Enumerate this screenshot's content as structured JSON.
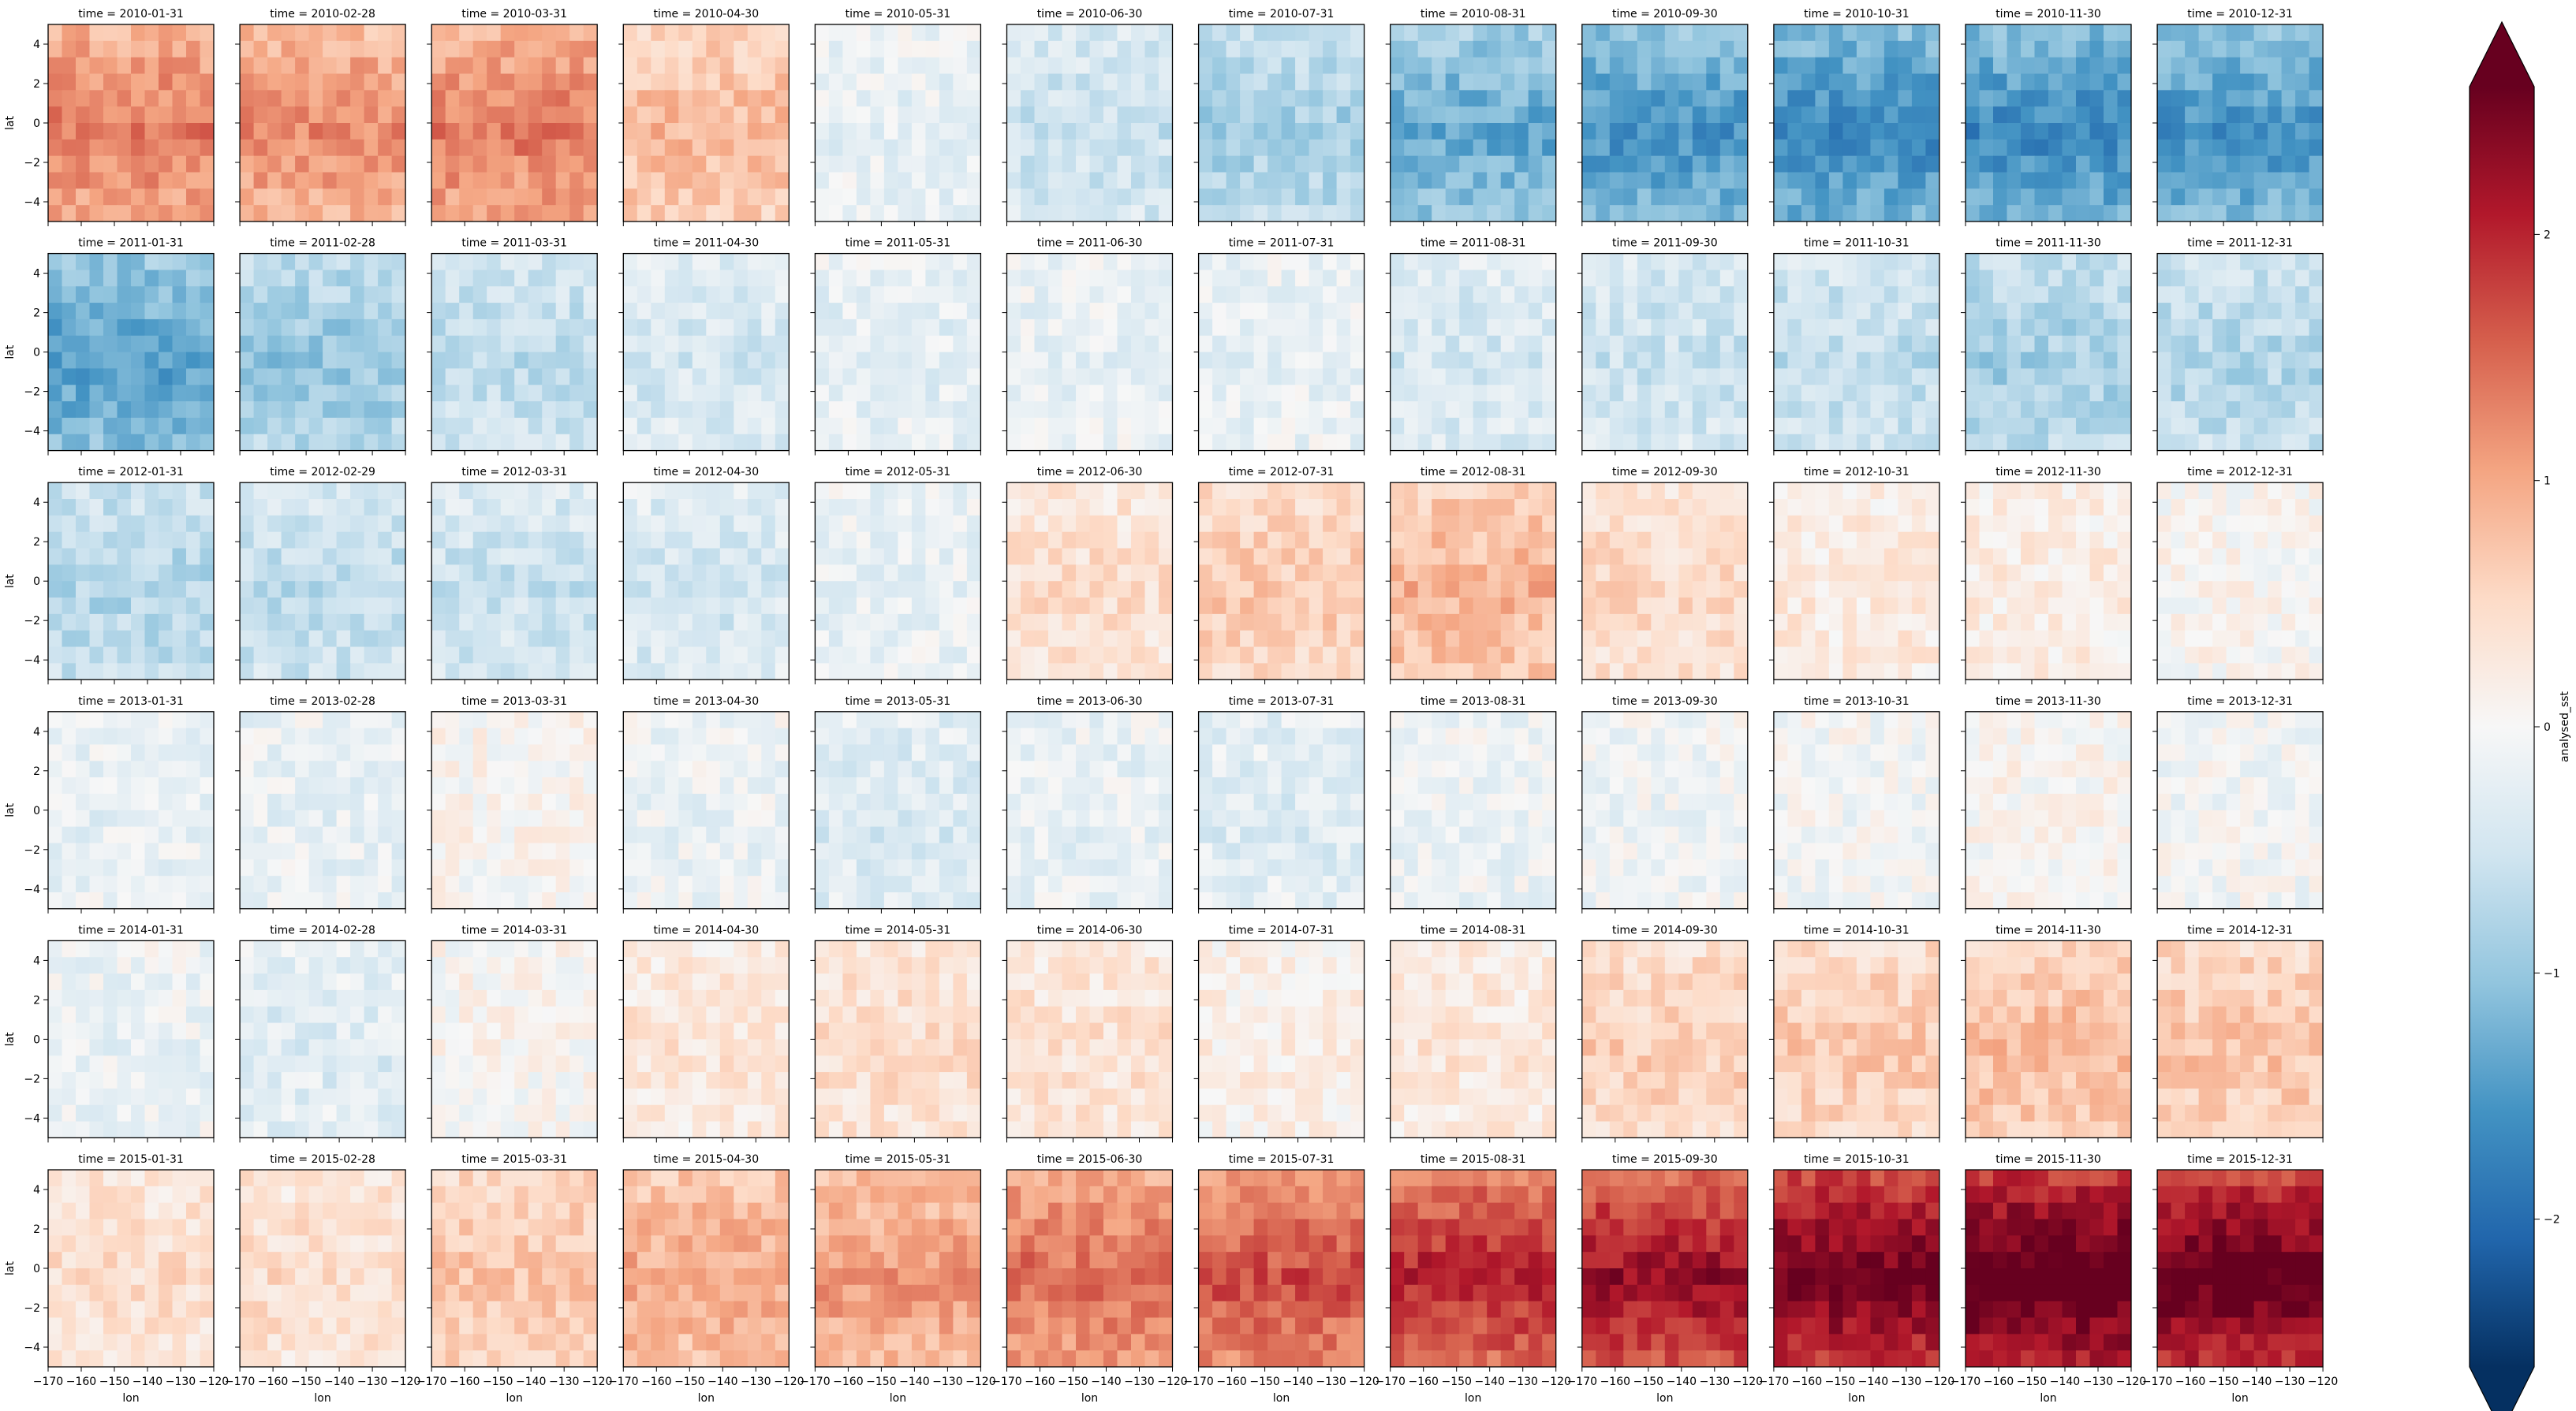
{
  "chart_data": {
    "type": "heatmap",
    "layout": "facet grid, 6 rows (years) x 12 columns (months)",
    "variable": "analysed_sst",
    "colormap": "RdBu_r",
    "colormap_stops": [
      "#053061",
      "#2166ac",
      "#4393c3",
      "#92c5de",
      "#d1e5f0",
      "#f7f7f7",
      "#fddbc7",
      "#f4a582",
      "#d6604d",
      "#b2182b",
      "#67001f"
    ],
    "colorbar": {
      "label": "analysed_sst",
      "range": [
        -2.6,
        2.6
      ],
      "ticks": [
        -2,
        -1,
        0,
        1,
        2
      ],
      "tick_labels": [
        "−2",
        "−1",
        "0",
        "1",
        "2"
      ],
      "extend": "both"
    },
    "xlabel": "lon",
    "ylabel": "lat",
    "xlim": [
      -170,
      -120
    ],
    "ylim": [
      -5,
      5
    ],
    "x_ticks": [
      -170,
      -160,
      -150,
      -140,
      -130,
      -120
    ],
    "x_tick_labels": [
      "−170",
      "−160",
      "−150",
      "−140",
      "−130",
      "−120"
    ],
    "y_ticks": [
      4,
      2,
      0,
      -2,
      -4
    ],
    "y_tick_labels": [
      "4",
      "2",
      "0",
      "−2",
      "−4"
    ],
    "panel_mean_anomaly": [
      [
        1.2,
        1.1,
        1.2,
        0.75,
        -0.2,
        -0.5,
        -0.8,
        -1.2,
        -1.4,
        -1.5,
        -1.5,
        -1.4
      ],
      [
        -1.3,
        -0.9,
        -0.6,
        -0.4,
        -0.25,
        -0.2,
        -0.2,
        -0.4,
        -0.5,
        -0.6,
        -0.8,
        -0.7
      ],
      [
        -0.7,
        -0.6,
        -0.5,
        -0.4,
        -0.2,
        0.4,
        0.6,
        0.8,
        0.45,
        0.25,
        0.2,
        0.05
      ],
      [
        -0.2,
        -0.2,
        0.05,
        -0.15,
        -0.35,
        -0.2,
        -0.3,
        -0.15,
        -0.1,
        -0.05,
        0.05,
        -0.05
      ],
      [
        -0.15,
        -0.3,
        0.05,
        0.3,
        0.4,
        0.35,
        0.15,
        0.3,
        0.55,
        0.6,
        0.75,
        0.65
      ],
      [
        0.4,
        0.4,
        0.65,
        0.9,
        1.0,
        1.3,
        1.5,
        1.8,
        2.0,
        2.3,
        2.5,
        2.4
      ]
    ],
    "panels": [
      {
        "title": "time = 2010-01-31"
      },
      {
        "title": "time = 2010-02-28"
      },
      {
        "title": "time = 2010-03-31"
      },
      {
        "title": "time = 2010-04-30"
      },
      {
        "title": "time = 2010-05-31"
      },
      {
        "title": "time = 2010-06-30"
      },
      {
        "title": "time = 2010-07-31"
      },
      {
        "title": "time = 2010-08-31"
      },
      {
        "title": "time = 2010-09-30"
      },
      {
        "title": "time = 2010-10-31"
      },
      {
        "title": "time = 2010-11-30"
      },
      {
        "title": "time = 2010-12-31"
      },
      {
        "title": "time = 2011-01-31"
      },
      {
        "title": "time = 2011-02-28"
      },
      {
        "title": "time = 2011-03-31"
      },
      {
        "title": "time = 2011-04-30"
      },
      {
        "title": "time = 2011-05-31"
      },
      {
        "title": "time = 2011-06-30"
      },
      {
        "title": "time = 2011-07-31"
      },
      {
        "title": "time = 2011-08-31"
      },
      {
        "title": "time = 2011-09-30"
      },
      {
        "title": "time = 2011-10-31"
      },
      {
        "title": "time = 2011-11-30"
      },
      {
        "title": "time = 2011-12-31"
      },
      {
        "title": "time = 2012-01-31"
      },
      {
        "title": "time = 2012-02-29"
      },
      {
        "title": "time = 2012-03-31"
      },
      {
        "title": "time = 2012-04-30"
      },
      {
        "title": "time = 2012-05-31"
      },
      {
        "title": "time = 2012-06-30"
      },
      {
        "title": "time = 2012-07-31"
      },
      {
        "title": "time = 2012-08-31"
      },
      {
        "title": "time = 2012-09-30"
      },
      {
        "title": "time = 2012-10-31"
      },
      {
        "title": "time = 2012-11-30"
      },
      {
        "title": "time = 2012-12-31"
      },
      {
        "title": "time = 2013-01-31"
      },
      {
        "title": "time = 2013-02-28"
      },
      {
        "title": "time = 2013-03-31"
      },
      {
        "title": "time = 2013-04-30"
      },
      {
        "title": "time = 2013-05-31"
      },
      {
        "title": "time = 2013-06-30"
      },
      {
        "title": "time = 2013-07-31"
      },
      {
        "title": "time = 2013-08-31"
      },
      {
        "title": "time = 2013-09-30"
      },
      {
        "title": "time = 2013-10-31"
      },
      {
        "title": "time = 2013-11-30"
      },
      {
        "title": "time = 2013-12-31"
      },
      {
        "title": "time = 2014-01-31"
      },
      {
        "title": "time = 2014-02-28"
      },
      {
        "title": "time = 2014-03-31"
      },
      {
        "title": "time = 2014-04-30"
      },
      {
        "title": "time = 2014-05-31"
      },
      {
        "title": "time = 2014-06-30"
      },
      {
        "title": "time = 2014-07-31"
      },
      {
        "title": "time = 2014-08-31"
      },
      {
        "title": "time = 2014-09-30"
      },
      {
        "title": "time = 2014-10-31"
      },
      {
        "title": "time = 2014-11-30"
      },
      {
        "title": "time = 2014-12-31"
      },
      {
        "title": "time = 2015-01-31"
      },
      {
        "title": "time = 2015-02-28"
      },
      {
        "title": "time = 2015-03-31"
      },
      {
        "title": "time = 2015-04-30"
      },
      {
        "title": "time = 2015-05-31"
      },
      {
        "title": "time = 2015-06-30"
      },
      {
        "title": "time = 2015-07-31"
      },
      {
        "title": "time = 2015-08-31"
      },
      {
        "title": "time = 2015-09-30"
      },
      {
        "title": "time = 2015-10-31"
      },
      {
        "title": "time = 2015-11-30"
      },
      {
        "title": "time = 2015-12-31"
      }
    ]
  }
}
